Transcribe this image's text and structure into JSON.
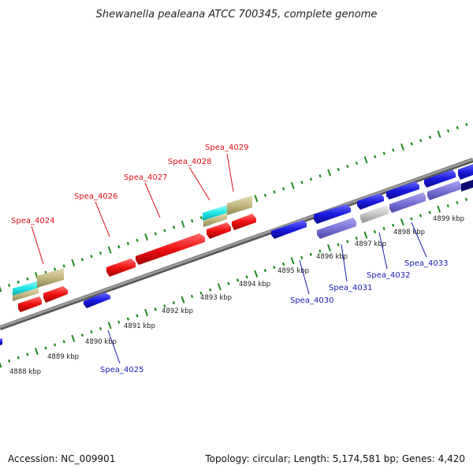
{
  "title": "Shewanella pealeana ATCC 700345, complete genome",
  "footer": {
    "accession": "Accession: NC_009901",
    "summary": "Topology: circular; Length: 5,174,581 bp; Genes: 4,420"
  },
  "scale_labels": [
    "4888 kbp",
    "4889 kbp",
    "4890 kbp",
    "4891 kbp",
    "4892 kbp",
    "4893 kbp",
    "4894 kbp",
    "4895 kbp",
    "4896 kbp",
    "4897 kbp",
    "4898 kbp",
    "4899 kbp"
  ],
  "gene_labels_top": [
    "Spea_4024",
    "Spea_4026",
    "Spea_4027",
    "Spea_4028",
    "Spea_4029"
  ],
  "gene_labels_bottom": [
    "Spea_4025",
    "Spea_4030",
    "Spea_4031",
    "Spea_4032",
    "Spea_4033"
  ],
  "colors": {
    "forward_gene": "#ee1111",
    "reverse_gene": "#1a1ae0",
    "light_blue_gene": "#7b74d8",
    "grey_gene": "#c8c8c8",
    "cyan_feature": "#22e6e6",
    "khaki_feature": "#c2b880",
    "tick_green": "#1e8a1e",
    "backbone": "#808080"
  }
}
